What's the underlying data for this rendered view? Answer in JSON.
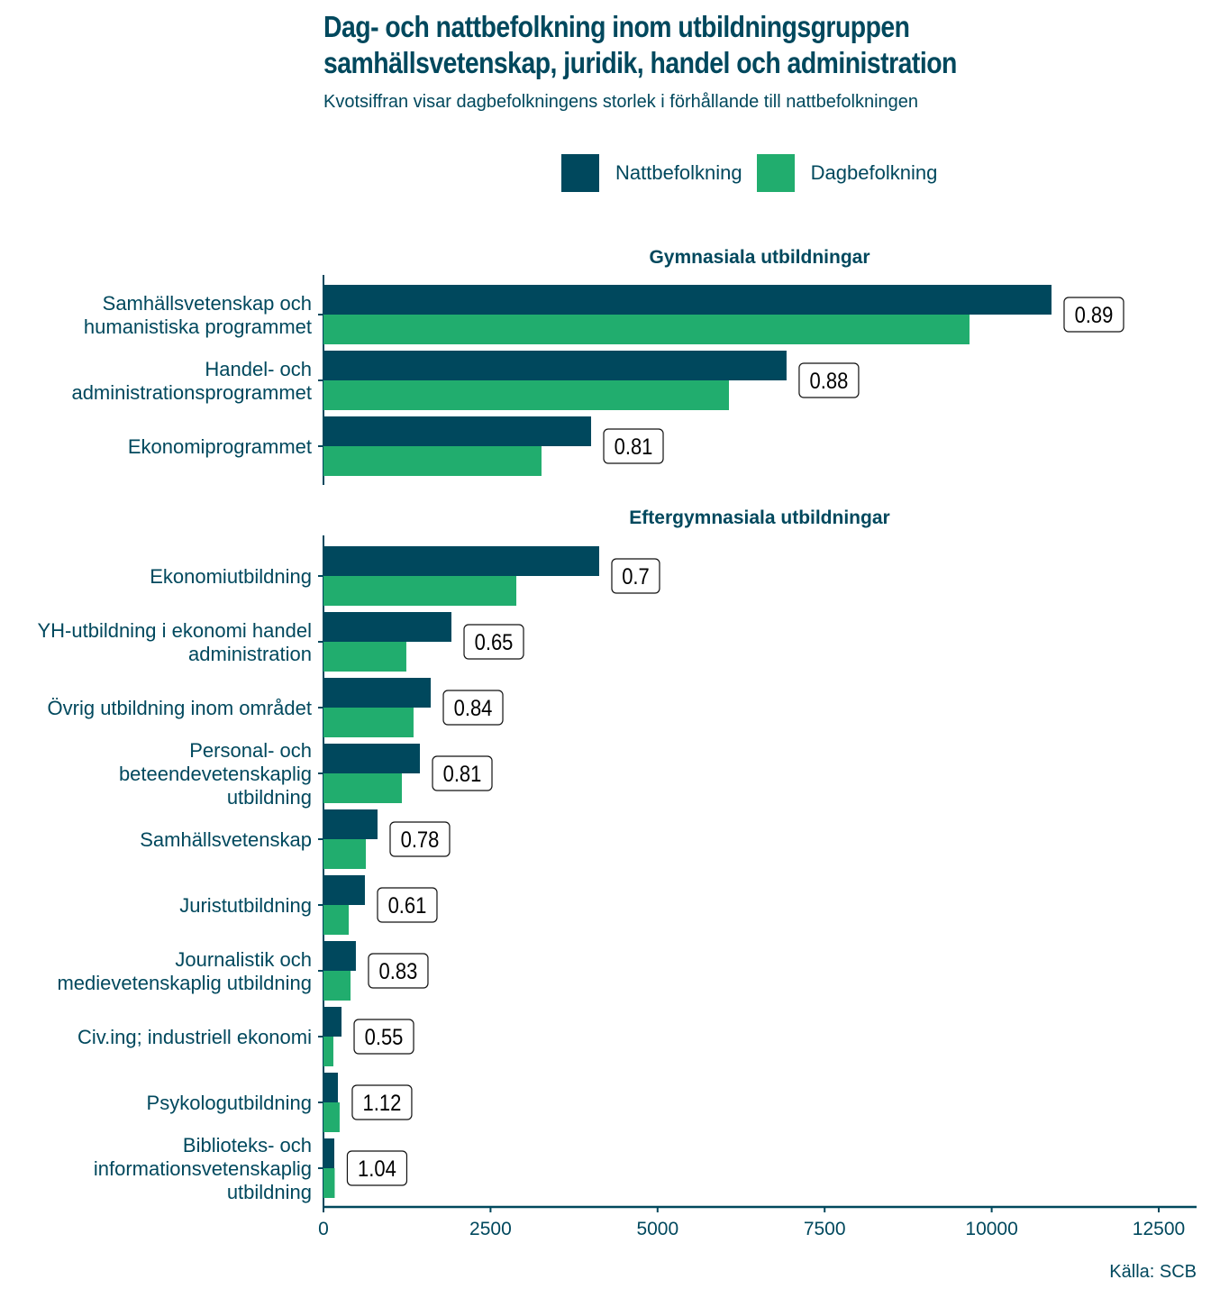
{
  "title_lines": [
    "Dag- och nattbefolkning inom utbildningsgruppen",
    "samhällsvetenskap, juridik, handel och administration"
  ],
  "subtitle": "Kvotsiffran visar dagbefolkningens storlek i förhållande till nattbefolkningen",
  "legend": [
    {
      "label": "Nattbefolkning",
      "color": "#00485d"
    },
    {
      "label": "Dagbefolkning",
      "color": "#21ad6e"
    }
  ],
  "source": "Källa: SCB",
  "chart_data": {
    "type": "bar",
    "orientation": "horizontal",
    "xlim": [
      0,
      13000
    ],
    "x_ticks": [
      "0",
      "2500",
      "5000",
      "7500",
      "10000",
      "12500"
    ],
    "x_tick_values": [
      0,
      2500,
      5000,
      7500,
      10000,
      12500
    ],
    "series_names": [
      "Nattbefolkning",
      "Dagbefolkning"
    ],
    "panels": [
      {
        "title": "Gymnasiala utbildningar",
        "categories": [
          {
            "label_lines": [
              "Samhällsvetenskap och",
              "humanistiska programmet"
            ],
            "natt": 10895,
            "dag": 9668,
            "ratio": "0.89"
          },
          {
            "label_lines": [
              "Handel- och",
              "administrationsprogrammet"
            ],
            "natt": 6930,
            "dag": 6068,
            "ratio": "0.88"
          },
          {
            "label_lines": [
              "Ekonomiprogrammet"
            ],
            "natt": 4005,
            "dag": 3263,
            "ratio": "0.81"
          }
        ]
      },
      {
        "title": "Eftergymnasiala utbildningar",
        "categories": [
          {
            "label_lines": [
              "Ekonomiutbildning"
            ],
            "natt": 4126,
            "dag": 2886,
            "ratio": "0.7"
          },
          {
            "label_lines": [
              "YH-utbildning i ekonomi handel",
              "administration"
            ],
            "natt": 1915,
            "dag": 1240,
            "ratio": "0.65"
          },
          {
            "label_lines": [
              "Övrig utbildning inom området"
            ],
            "natt": 1605,
            "dag": 1348,
            "ratio": "0.84"
          },
          {
            "label_lines": [
              "Personal- och",
              "beteendevetenskaplig",
              "utbildning"
            ],
            "natt": 1443,
            "dag": 1173,
            "ratio": "0.81"
          },
          {
            "label_lines": [
              "Samhällsvetenskap"
            ],
            "natt": 809,
            "dag": 634,
            "ratio": "0.78"
          },
          {
            "label_lines": [
              "Juristutbildning"
            ],
            "natt": 620,
            "dag": 378,
            "ratio": "0.61"
          },
          {
            "label_lines": [
              "Journalistik och",
              "medievetenskaplig utbildning"
            ],
            "natt": 485,
            "dag": 405,
            "ratio": "0.83"
          },
          {
            "label_lines": [
              "Civ.ing; industriell ekonomi"
            ],
            "natt": 270,
            "dag": 148,
            "ratio": "0.55"
          },
          {
            "label_lines": [
              "Psykologutbildning"
            ],
            "natt": 216,
            "dag": 242,
            "ratio": "1.12"
          },
          {
            "label_lines": [
              "Biblioteks- och",
              "informationsvetenskaplig",
              "utbildning"
            ],
            "natt": 162,
            "dag": 168,
            "ratio": "1.04"
          }
        ]
      }
    ]
  }
}
